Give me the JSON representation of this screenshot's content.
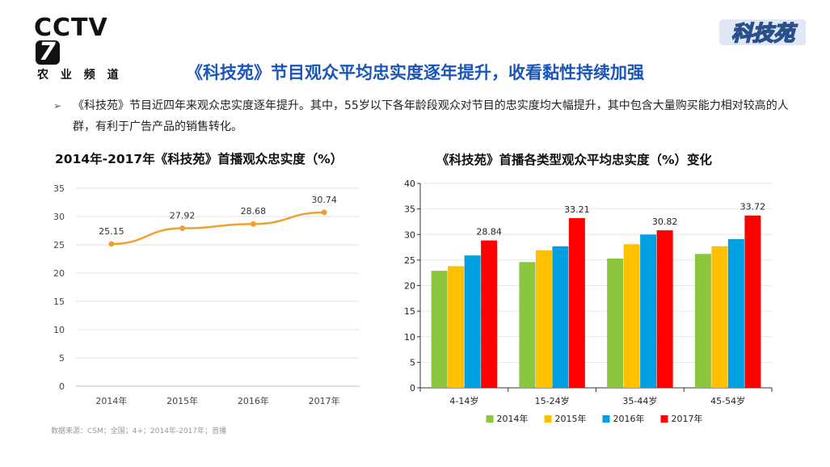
{
  "logo": {
    "brand": "CCTV",
    "number": "7",
    "channel": "农 业 频 道",
    "program_logo_text": "科技苑"
  },
  "title": "《科技苑》节目观众平均忠实度逐年提升，收看黏性持续加强",
  "bullet": "《科技苑》节目近四年来观众忠实度逐年提升。其中，55岁以下各年龄段观众对节目的忠实度均大幅提升，其中包含大量购买能力相对较高的人群，有利于广告产品的销售转化。",
  "footnote": "数据来源：CSM；全国；4+；2014年-2017年；首播",
  "colors": {
    "title": "#1a55b8",
    "line": "#f0a030",
    "s2014": "#8cc63f",
    "s2015": "#ffc000",
    "s2016": "#00a0e0",
    "s2017": "#ff0000"
  },
  "chart_data": [
    {
      "type": "line",
      "title": "2014年-2017年《科技苑》首播观众忠实度（%）",
      "categories": [
        "2014年",
        "2015年",
        "2016年",
        "2017年"
      ],
      "values": [
        25.15,
        27.92,
        28.68,
        30.74
      ],
      "data_labels": [
        "25.15",
        "27.92",
        "28.68",
        "30.74"
      ],
      "ylim": [
        0,
        35
      ],
      "yticks": [
        0,
        5,
        10,
        15,
        20,
        25,
        30,
        35
      ],
      "grid": true
    },
    {
      "type": "bar",
      "title": "《科技苑》首播各类型观众平均忠实度（%）变化",
      "categories": [
        "4-14岁",
        "15-24岁",
        "35-44岁",
        "45-54岁"
      ],
      "series": [
        {
          "name": "2014年",
          "values": [
            22.9,
            24.6,
            25.3,
            26.2
          ]
        },
        {
          "name": "2015年",
          "values": [
            23.8,
            26.9,
            28.1,
            27.7
          ]
        },
        {
          "name": "2016年",
          "values": [
            25.9,
            27.7,
            30.0,
            29.1
          ]
        },
        {
          "name": "2017年",
          "values": [
            28.84,
            33.21,
            30.82,
            33.72
          ]
        }
      ],
      "data_labels": [
        "28.84",
        "33.21",
        "30.82",
        "33.72"
      ],
      "ylim": [
        0,
        40
      ],
      "yticks": [
        0,
        5,
        10,
        15,
        20,
        25,
        30,
        35,
        40
      ],
      "grid": true,
      "legend": "bottom"
    }
  ]
}
